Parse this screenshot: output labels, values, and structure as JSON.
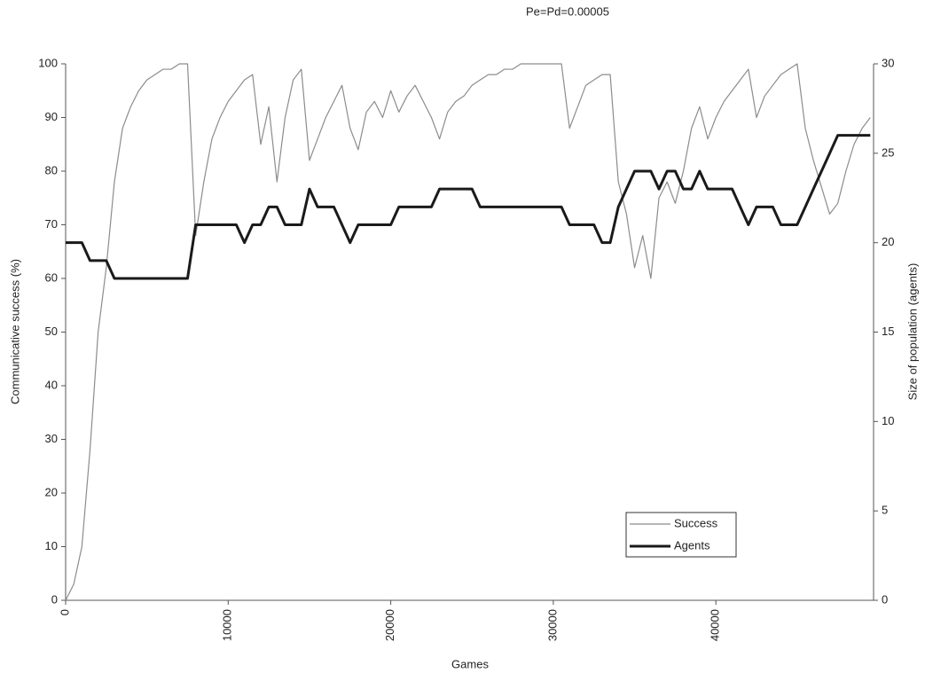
{
  "chart_data": {
    "type": "line",
    "title": "Pe=Pd=0.00005",
    "x_label": "Games",
    "y_label": "Communicative success (%)",
    "y2_label": "Size of population (agents)",
    "x": [
      0,
      500,
      1000,
      1500,
      2000,
      2500,
      3000,
      3500,
      4000,
      4500,
      5000,
      5500,
      6000,
      6500,
      7000,
      7500,
      8000,
      8500,
      9000,
      9500,
      10000,
      10500,
      11000,
      11500,
      12000,
      12500,
      13000,
      13500,
      14000,
      14500,
      15000,
      15500,
      16000,
      16500,
      17000,
      17500,
      18000,
      18500,
      19000,
      19500,
      20000,
      20500,
      21000,
      21500,
      22000,
      22500,
      23000,
      23500,
      24000,
      24500,
      25000,
      25500,
      26000,
      26500,
      27000,
      27500,
      28000,
      28500,
      29000,
      29500,
      30000,
      30500,
      31000,
      31500,
      32000,
      32500,
      33000,
      33500,
      34000,
      34500,
      35000,
      35500,
      36000,
      36500,
      37000,
      37500,
      38000,
      38500,
      39000,
      39500,
      40000,
      40500,
      41000,
      41500,
      42000,
      42500,
      43000,
      43500,
      44000,
      44500,
      45000,
      45500,
      46000,
      46500,
      47000,
      47500,
      48000,
      48500,
      49000,
      49500
    ],
    "series": [
      {
        "name": "Success",
        "color": "#8c8c8c",
        "width": 1.2,
        "values": [
          0,
          3,
          10,
          28,
          50,
          62,
          78,
          88,
          92,
          95,
          97,
          98,
          99,
          99,
          100,
          100,
          68,
          78,
          86,
          90,
          93,
          95,
          97,
          98,
          85,
          92,
          78,
          90,
          97,
          99,
          82,
          86,
          90,
          93,
          96,
          88,
          84,
          91,
          93,
          90,
          95,
          91,
          94,
          96,
          93,
          90,
          86,
          91,
          93,
          94,
          96,
          97,
          98,
          98,
          99,
          99,
          100,
          100,
          100,
          100,
          100,
          100,
          88,
          92,
          96,
          97,
          98,
          98,
          78,
          72,
          62,
          68,
          60,
          75,
          78,
          74,
          80,
          88,
          92,
          86,
          90,
          93,
          95,
          97,
          99,
          90,
          94,
          96,
          98,
          99,
          100,
          88,
          82,
          77,
          72,
          74,
          80,
          85,
          88,
          90
        ]
      },
      {
        "name": "Agents",
        "color": "#1a1a1a",
        "width": 3,
        "axis": "y2",
        "values": [
          20,
          20,
          20,
          19,
          19,
          19,
          18,
          18,
          18,
          18,
          18,
          18,
          18,
          18,
          18,
          18,
          21,
          21,
          21,
          21,
          21,
          21,
          20,
          21,
          21,
          22,
          22,
          21,
          21,
          21,
          23,
          22,
          22,
          22,
          21,
          20,
          21,
          21,
          21,
          21,
          21,
          22,
          22,
          22,
          22,
          22,
          23,
          23,
          23,
          23,
          23,
          22,
          22,
          22,
          22,
          22,
          22,
          22,
          22,
          22,
          22,
          22,
          21,
          21,
          21,
          21,
          20,
          20,
          22,
          23,
          24,
          24,
          24,
          23,
          24,
          24,
          23,
          23,
          24,
          23,
          23,
          23,
          23,
          22,
          21,
          22,
          22,
          22,
          21,
          21,
          21,
          22,
          23,
          24,
          25,
          26,
          26,
          26,
          26,
          26
        ]
      }
    ],
    "xlim": [
      0,
      49700
    ],
    "xticks": [
      0,
      10000,
      20000,
      30000,
      40000
    ],
    "ylim": [
      0,
      100
    ],
    "yticks": [
      0,
      10,
      20,
      30,
      40,
      50,
      60,
      70,
      80,
      90,
      100
    ],
    "y2lim": [
      0,
      30
    ],
    "y2ticks": [
      0,
      5,
      10,
      15,
      20,
      25,
      30
    ],
    "legend": "bottom-right"
  }
}
